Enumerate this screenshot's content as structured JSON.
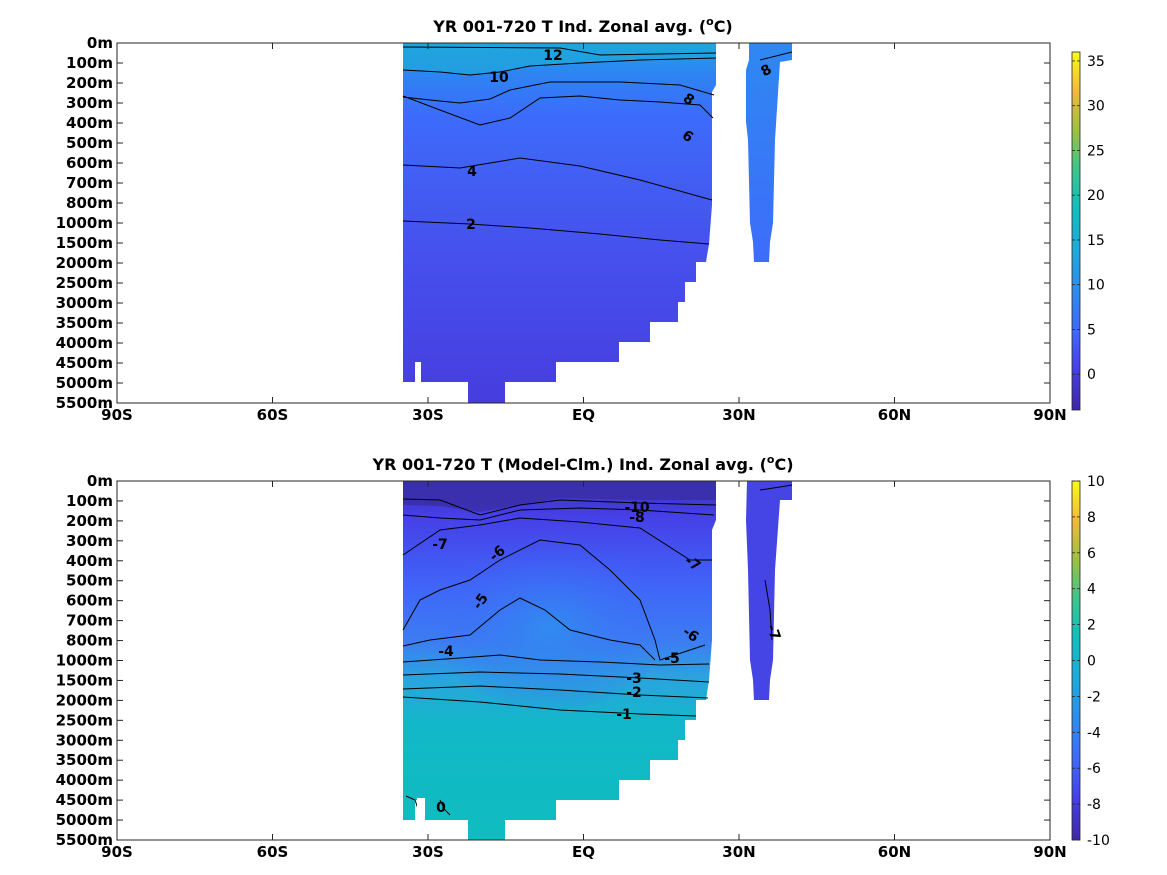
{
  "chart_data": [
    {
      "type": "heatmap",
      "title": "YR 001-720 T Ind. Zonal avg. (",
      "title_superscript": "o",
      "title_suffix": "C)",
      "x_ticks": [
        "90S",
        "60S",
        "30S",
        "EQ",
        "30N",
        "60N",
        "90N"
      ],
      "x_tick_values": [
        -90,
        -60,
        -30,
        0,
        30,
        60,
        90
      ],
      "xlim": [
        -90,
        90
      ],
      "y_ticks": [
        "0m",
        "100m",
        "200m",
        "300m",
        "400m",
        "500m",
        "600m",
        "700m",
        "800m",
        "1000m",
        "1500m",
        "2000m",
        "2500m",
        "3000m",
        "3500m",
        "4000m",
        "4500m",
        "5000m",
        "5500m"
      ],
      "colorbar": {
        "ticks": [
          "35",
          "30",
          "25",
          "20",
          "15",
          "10",
          "5",
          "0"
        ],
        "tick_values": [
          35,
          30,
          25,
          20,
          15,
          10,
          5,
          0
        ],
        "range": [
          -4,
          36
        ]
      },
      "contour_labels": [
        "12",
        "10",
        "8",
        "8",
        "6",
        "4",
        "2"
      ],
      "contour_levels": [
        2,
        4,
        6,
        8,
        10,
        12
      ]
    },
    {
      "type": "heatmap",
      "title": "YR 001-720 T (Model-Clm.) Ind. Zonal avg. (",
      "title_superscript": "o",
      "title_suffix": "C)",
      "x_ticks": [
        "90S",
        "60S",
        "30S",
        "EQ",
        "30N",
        "60N",
        "90N"
      ],
      "x_tick_values": [
        -90,
        -60,
        -30,
        0,
        30,
        60,
        90
      ],
      "xlim": [
        -90,
        90
      ],
      "y_ticks": [
        "0m",
        "100m",
        "200m",
        "300m",
        "400m",
        "500m",
        "600m",
        "700m",
        "800m",
        "1000m",
        "1500m",
        "2000m",
        "2500m",
        "3000m",
        "3500m",
        "4000m",
        "4500m",
        "5000m",
        "5500m"
      ],
      "colorbar": {
        "ticks": [
          "10",
          "8",
          "6",
          "4",
          "2",
          "0",
          "-2",
          "-4",
          "-6",
          "-8",
          "-10"
        ],
        "tick_values": [
          10,
          8,
          6,
          4,
          2,
          0,
          -2,
          -4,
          -6,
          -8,
          -10
        ],
        "range": [
          -10,
          10
        ]
      },
      "contour_labels": [
        "-10",
        "-8",
        "-7",
        "-6",
        "-7",
        "-5",
        "-4",
        "-6",
        "-5",
        "-7",
        "-3",
        "-2",
        "-1",
        "0"
      ],
      "contour_levels": [
        -10,
        -8,
        -7,
        -6,
        -5,
        -4,
        -3,
        -2,
        -1,
        0
      ]
    }
  ]
}
